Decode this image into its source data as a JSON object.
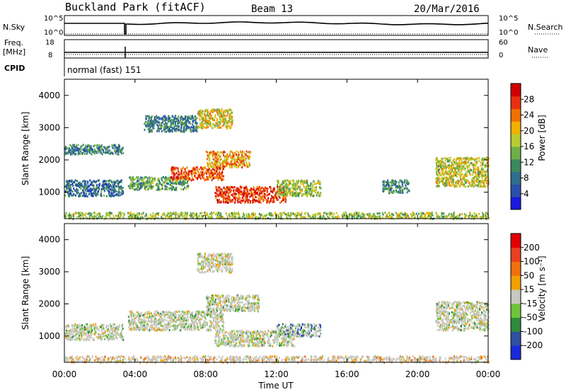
{
  "header": {
    "title": "Buckland Park (fitACF)",
    "beam": "Beam 13",
    "date": "20/Mar/2016"
  },
  "status_panels": {
    "nsky_label": "N.Sky",
    "nsky_ticks": [
      "10^5",
      "10^0"
    ],
    "nsearch_label": "N.Search",
    "nsearch_ticks": [
      "10^5",
      "10^0"
    ],
    "freq_label_1": "Freq.",
    "freq_label_2": "[MHz]",
    "freq_ticks": [
      "18",
      "8"
    ],
    "nave_label": "Nave",
    "nave_ticks": [
      "60",
      "0"
    ],
    "cpid_label": "CPID",
    "cpid_value": "normal (fast) 151"
  },
  "x_axis": {
    "label": "Time UT",
    "ticks": [
      "00:00",
      "04:00",
      "08:00",
      "12:00",
      "16:00",
      "20:00",
      "00:00"
    ]
  },
  "chart_data": [
    {
      "type": "heatmap",
      "panel": "power",
      "ylabel": "Slant Range [km]",
      "yticks": [
        "1000",
        "2000",
        "3000",
        "4000"
      ],
      "ylim": [
        180,
        4500
      ],
      "xlim": [
        0,
        24
      ],
      "colorbar": {
        "label": "Power [dB]",
        "ticks": [
          "4",
          "8",
          "12",
          "16",
          "20",
          "24",
          "28"
        ],
        "colors": [
          "#1a1ae0",
          "#2b4fa8",
          "#2f6e8c",
          "#3a8a5c",
          "#6fae48",
          "#b8cc30",
          "#f0b000",
          "#f07000",
          "#e83010",
          "#d00000"
        ]
      },
      "echo_regions": [
        {
          "x": [
            0.0,
            24.0
          ],
          "y": [
            200,
            400
          ],
          "level": 0.5
        },
        {
          "x": [
            0.0,
            3.3
          ],
          "y": [
            900,
            1400
          ],
          "level": 0.25
        },
        {
          "x": [
            3.6,
            7.0
          ],
          "y": [
            1100,
            1500
          ],
          "level": 0.4
        },
        {
          "x": [
            6.0,
            9.0
          ],
          "y": [
            1400,
            1800
          ],
          "level": 0.8
        },
        {
          "x": [
            8.0,
            10.5
          ],
          "y": [
            1800,
            2300
          ],
          "level": 0.7
        },
        {
          "x": [
            8.5,
            12.5
          ],
          "y": [
            700,
            1200
          ],
          "level": 0.85
        },
        {
          "x": [
            4.5,
            7.5
          ],
          "y": [
            2900,
            3400
          ],
          "level": 0.3
        },
        {
          "x": [
            7.5,
            9.5
          ],
          "y": [
            3000,
            3600
          ],
          "level": 0.6
        },
        {
          "x": [
            12.0,
            14.5
          ],
          "y": [
            900,
            1400
          ],
          "level": 0.5
        },
        {
          "x": [
            21.0,
            24.0
          ],
          "y": [
            1200,
            2100
          ],
          "level": 0.55
        },
        {
          "x": [
            0.0,
            3.3
          ],
          "y": [
            2200,
            2500
          ],
          "level": 0.3
        },
        {
          "x": [
            18.0,
            19.5
          ],
          "y": [
            1000,
            1400
          ],
          "level": 0.3
        }
      ]
    },
    {
      "type": "heatmap",
      "panel": "velocity",
      "ylabel": "Slant Range [km]",
      "yticks": [
        "1000",
        "2000",
        "3000",
        "4000"
      ],
      "ylim": [
        180,
        4500
      ],
      "xlim": [
        0,
        24
      ],
      "colorbar": {
        "label": "Velocity [m s⁻¹]",
        "ticks": [
          "200",
          "100",
          "50",
          "15",
          "-15",
          "-50",
          "-100",
          "-200"
        ],
        "colors": [
          "#1a2ad8",
          "#2f4fa0",
          "#2e8a3e",
          "#6ec43a",
          "#c8c8c0",
          "#f0a000",
          "#f07010",
          "#e84020",
          "#e00000"
        ]
      },
      "echo_regions": [
        {
          "x": [
            0.0,
            24.0
          ],
          "y": [
            200,
            400
          ],
          "level": 0.6
        },
        {
          "x": [
            0.0,
            3.3
          ],
          "y": [
            900,
            1400
          ],
          "level": 0.45
        },
        {
          "x": [
            3.6,
            9.0
          ],
          "y": [
            1200,
            1800
          ],
          "level": 0.45
        },
        {
          "x": [
            8.0,
            11.0
          ],
          "y": [
            1800,
            2300
          ],
          "level": 0.45
        },
        {
          "x": [
            8.5,
            13.0
          ],
          "y": [
            700,
            1200
          ],
          "level": 0.45
        },
        {
          "x": [
            12.0,
            14.5
          ],
          "y": [
            1000,
            1400
          ],
          "level": 0.25
        },
        {
          "x": [
            7.5,
            9.5
          ],
          "y": [
            3000,
            3600
          ],
          "level": 0.5
        },
        {
          "x": [
            21.0,
            24.0
          ],
          "y": [
            1200,
            2100
          ],
          "level": 0.45
        }
      ]
    }
  ]
}
